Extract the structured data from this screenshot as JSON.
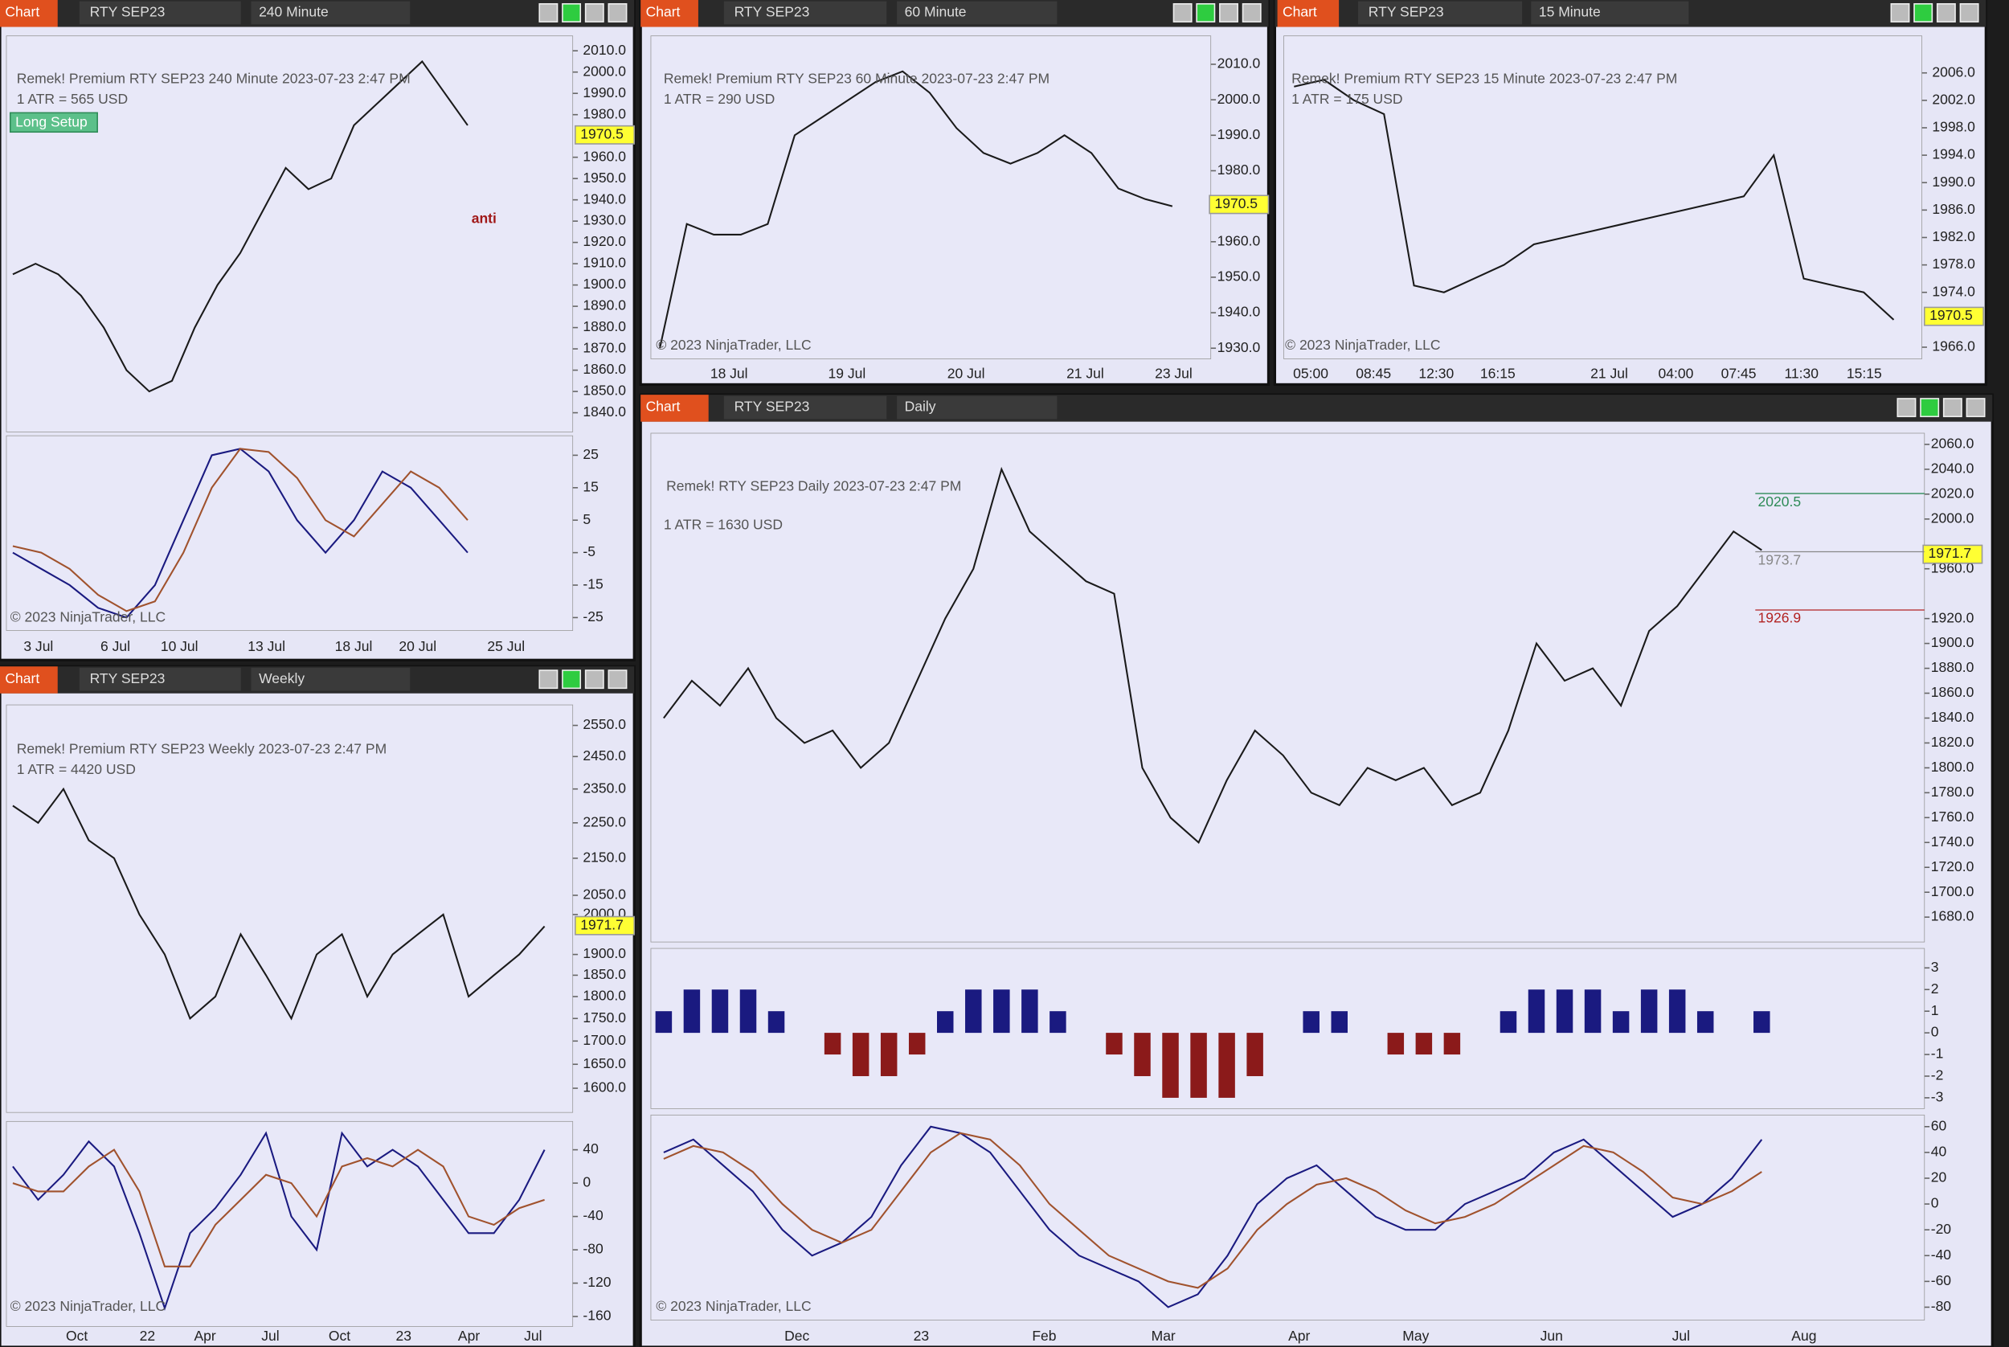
{
  "windows": [
    {
      "toolbar": {
        "title": "Chart",
        "instrument": "RTY SEP23",
        "interval": "240 Minute"
      },
      "info": "Remek!  Premium  RTY SEP23  240 Minute  2023-07-23 2:47 PM",
      "atr": "1 ATR = 565 USD",
      "badge": "Long Setup",
      "note": "anti",
      "copyright": "© 2023 NinjaTrader, LLC",
      "last_price": 1970.5,
      "x_labels": [
        "3 Jul",
        "6 Jul",
        "10 Jul",
        "13 Jul",
        "18 Jul",
        "20 Jul",
        "25 Jul"
      ],
      "panes": [
        {
          "type": "line",
          "ylim": [
            1831,
            2017
          ],
          "yticks": [
            {
              "value": 2010,
              "label": "2010.0"
            },
            {
              "value": 2000,
              "label": "2000.0"
            },
            {
              "value": 1990,
              "label": "1990.0"
            },
            {
              "value": 1980,
              "label": "1980.0"
            },
            {
              "value": 1960,
              "label": "1960.0"
            },
            {
              "value": 1950,
              "label": "1950.0"
            },
            {
              "value": 1940,
              "label": "1940.0"
            },
            {
              "value": 1930,
              "label": "1930.0"
            },
            {
              "value": 1920,
              "label": "1920.0"
            },
            {
              "value": 1910,
              "label": "1910.0"
            },
            {
              "value": 1900,
              "label": "1900.0"
            },
            {
              "value": 1890,
              "label": "1890.0"
            },
            {
              "value": 1880,
              "label": "1880.0"
            },
            {
              "value": 1870,
              "label": "1870.0"
            },
            {
              "value": 1860,
              "label": "1860.0"
            },
            {
              "value": 1850,
              "label": "1850.0"
            },
            {
              "value": 1840,
              "label": "1840.0"
            }
          ],
          "series": [
            {
              "color": "#1a1a1a",
              "values": [
                1905,
                1910,
                1905,
                1895,
                1880,
                1860,
                1850,
                1855,
                1880,
                1900,
                1915,
                1935,
                1955,
                1945,
                1950,
                1975,
                1985,
                1995,
                2005,
                1990,
                1975
              ]
            }
          ]
        },
        {
          "type": "line",
          "ylim": [
            -29,
            31
          ],
          "yticks": [
            25,
            15,
            5,
            -5,
            -15,
            -25
          ],
          "series": [
            {
              "color": "#1a1a80",
              "values": [
                -5,
                -10,
                -15,
                -22,
                -25,
                -15,
                5,
                25,
                27,
                20,
                5,
                -5,
                5,
                20,
                15,
                5,
                -5
              ]
            },
            {
              "color": "#a0522d",
              "values": [
                -3,
                -5,
                -10,
                -18,
                -23,
                -20,
                -5,
                15,
                27,
                26,
                18,
                5,
                0,
                10,
                20,
                15,
                5
              ]
            }
          ]
        }
      ]
    },
    {
      "toolbar": {
        "title": "Chart",
        "instrument": "RTY SEP23",
        "interval": "60 Minute"
      },
      "info": "Remek!  Premium  RTY SEP23  60 Minute  2023-07-23 2:47 PM",
      "atr": "1 ATR = 290 USD",
      "copyright": "© 2023 NinjaTrader, LLC",
      "last_price": 1970.5,
      "x_labels": [
        "18 Jul",
        "19 Jul",
        "20 Jul",
        "21 Jul",
        "23 Jul"
      ],
      "panes": [
        {
          "type": "line",
          "ylim": [
            1927,
            2018
          ],
          "yticks": [
            {
              "value": 2010,
              "label": "2010.0"
            },
            {
              "value": 2000,
              "label": "2000.0"
            },
            {
              "value": 1990,
              "label": "1990.0"
            },
            {
              "value": 1980,
              "label": "1980.0"
            },
            {
              "value": 1960,
              "label": "1960.0"
            },
            {
              "value": 1950,
              "label": "1950.0"
            },
            {
              "value": 1940,
              "label": "1940.0"
            },
            {
              "value": 1930,
              "label": "1930.0"
            }
          ],
          "series": [
            {
              "color": "#1a1a1a",
              "values": [
                1930,
                1965,
                1962,
                1962,
                1965,
                1990,
                1995,
                2000,
                2005,
                2008,
                2002,
                1992,
                1985,
                1982,
                1985,
                1990,
                1985,
                1975,
                1972,
                1970
              ]
            }
          ]
        }
      ]
    },
    {
      "toolbar": {
        "title": "Chart",
        "instrument": "RTY SEP23",
        "interval": "15 Minute"
      },
      "info": "Remek!  Premium  RTY SEP23  15 Minute  2023-07-23 2:47 PM",
      "atr": "1 ATR = 175 USD",
      "copyright": "© 2023 NinjaTrader, LLC",
      "last_price": 1970.5,
      "x_labels": [
        "05:00",
        "08:45",
        "12:30",
        "16:15",
        "21 Jul",
        "04:00",
        "07:45",
        "11:30",
        "15:15"
      ],
      "panes": [
        {
          "type": "line",
          "ylim": [
            1964.3,
            2011.4
          ],
          "yticks": [
            {
              "value": 2006,
              "label": "2006.0"
            },
            {
              "value": 2002,
              "label": "2002.0"
            },
            {
              "value": 1998,
              "label": "1998.0"
            },
            {
              "value": 1994,
              "label": "1994.0"
            },
            {
              "value": 1990,
              "label": "1990.0"
            },
            {
              "value": 1986,
              "label": "1986.0"
            },
            {
              "value": 1982,
              "label": "1982.0"
            },
            {
              "value": 1978,
              "label": "1978.0"
            },
            {
              "value": 1974,
              "label": "1974.0"
            },
            {
              "value": 1966,
              "label": "1966.0"
            }
          ],
          "series": [
            {
              "color": "#1a1a1a",
              "values": [
                2004,
                2005,
                2002,
                2000,
                1975,
                1974,
                1976,
                1978,
                1981,
                1982,
                1983,
                1984,
                1985,
                1986,
                1987,
                1988,
                1994,
                1976,
                1975,
                1974,
                1970
              ]
            }
          ]
        }
      ]
    },
    {
      "toolbar": {
        "title": "Chart",
        "instrument": "RTY SEP23",
        "interval": "Daily"
      },
      "info": "Remek!  RTY SEP23  Daily  2023-07-23 2:47 PM",
      "atr": "1 ATR = 1630 USD",
      "copyright": "© 2023 NinjaTrader, LLC",
      "last_price": 1971.7,
      "levels": [
        2020.5,
        1973.7,
        1926.9
      ],
      "level_colors": [
        "#2e8b57",
        "#888888",
        "#b22222"
      ],
      "x_labels": [
        "Dec",
        "23",
        "Feb",
        "Mar",
        "Apr",
        "May",
        "Jun",
        "Jul",
        "Aug"
      ],
      "panes": [
        {
          "type": "line",
          "ylim": [
            1660,
            2069
          ],
          "yticks": [
            {
              "value": 2060,
              "label": "2060.0"
            },
            {
              "value": 2040,
              "label": "2040.0"
            },
            {
              "value": 2020,
              "label": "2020.0"
            },
            {
              "value": 2000,
              "label": "2000.0"
            },
            {
              "value": 1960,
              "label": "1960.0"
            },
            {
              "value": 1920,
              "label": "1920.0"
            },
            {
              "value": 1900,
              "label": "1900.0"
            },
            {
              "value": 1880,
              "label": "1880.0"
            },
            {
              "value": 1860,
              "label": "1860.0"
            },
            {
              "value": 1840,
              "label": "1840.0"
            },
            {
              "value": 1820,
              "label": "1820.0"
            },
            {
              "value": 1800,
              "label": "1800.0"
            },
            {
              "value": 1780,
              "label": "1780.0"
            },
            {
              "value": 1760,
              "label": "1760.0"
            },
            {
              "value": 1740,
              "label": "1740.0"
            },
            {
              "value": 1720,
              "label": "1720.0"
            },
            {
              "value": 1700,
              "label": "1700.0"
            },
            {
              "value": 1680,
              "label": "1680.0"
            }
          ],
          "series": [
            {
              "color": "#1a1a1a",
              "values": [
                1840,
                1870,
                1850,
                1880,
                1840,
                1820,
                1830,
                1800,
                1820,
                1870,
                1920,
                1960,
                2040,
                1990,
                1970,
                1950,
                1940,
                1800,
                1760,
                1740,
                1790,
                1830,
                1810,
                1780,
                1770,
                1800,
                1790,
                1800,
                1770,
                1780,
                1830,
                1900,
                1870,
                1880,
                1850,
                1910,
                1930,
                1960,
                1990,
                1975
              ]
            }
          ]
        },
        {
          "type": "bar",
          "ylim": [
            -3.5,
            3.9
          ],
          "yticks": [
            3,
            2,
            1,
            0,
            -1,
            -2,
            -3
          ],
          "series": [
            {
              "color": "#1a1a80",
              "values": [
                1,
                2,
                2,
                2,
                1,
                0,
                -1,
                -2,
                -2,
                -1,
                1,
                2,
                2,
                2,
                1,
                0,
                -1,
                -2,
                -3,
                -3,
                -3,
                -2,
                0,
                1,
                1,
                0,
                -1,
                -1,
                -1,
                0,
                1,
                2,
                2,
                2,
                1,
                2,
                2,
                1,
                0,
                1
              ]
            }
          ]
        },
        {
          "type": "line",
          "ylim": [
            -90,
            69
          ],
          "yticks": [
            60,
            40,
            20,
            0,
            -20,
            -40,
            -60,
            -80
          ],
          "series": [
            {
              "color": "#1a1a80",
              "values": [
                40,
                50,
                30,
                10,
                -20,
                -40,
                -30,
                -10,
                30,
                60,
                55,
                40,
                10,
                -20,
                -40,
                -50,
                -60,
                -80,
                -70,
                -40,
                0,
                20,
                30,
                10,
                -10,
                -20,
                -20,
                0,
                10,
                20,
                40,
                50,
                30,
                10,
                -10,
                0,
                20,
                50
              ]
            },
            {
              "color": "#a0522d",
              "values": [
                35,
                45,
                40,
                25,
                0,
                -20,
                -30,
                -20,
                10,
                40,
                55,
                50,
                30,
                0,
                -20,
                -40,
                -50,
                -60,
                -65,
                -50,
                -20,
                0,
                15,
                20,
                10,
                -5,
                -15,
                -10,
                0,
                15,
                30,
                45,
                40,
                25,
                5,
                0,
                10,
                25
              ]
            }
          ]
        }
      ]
    },
    {
      "toolbar": {
        "title": "Chart",
        "instrument": "RTY SEP23",
        "interval": "Weekly"
      },
      "info": "Remek!  Premium  RTY SEP23  Weekly  2023-07-23 2:47 PM",
      "atr": "1 ATR = 4420 USD",
      "copyright": "© 2023 NinjaTrader, LLC",
      "last_price": 1971.7,
      "x_labels": [
        "Oct",
        "22",
        "Apr",
        "Jul",
        "Oct",
        "23",
        "Apr",
        "Jul"
      ],
      "panes": [
        {
          "type": "line",
          "log": true,
          "ylim": [
            1551,
            2618
          ],
          "yticks": [
            {
              "value": 2550,
              "label": "2550.0"
            },
            {
              "value": 2450,
              "label": "2450.0"
            },
            {
              "value": 2350,
              "label": "2350.0"
            },
            {
              "value": 2250,
              "label": "2250.0"
            },
            {
              "value": 2150,
              "label": "2150.0"
            },
            {
              "value": 2050,
              "label": "2050.0"
            },
            {
              "value": 2000,
              "label": "2000.0"
            },
            {
              "value": 1900,
              "label": "1900.0"
            },
            {
              "value": 1850,
              "label": "1850.0"
            },
            {
              "value": 1800,
              "label": "1800.0"
            },
            {
              "value": 1750,
              "label": "1750.0"
            },
            {
              "value": 1700,
              "label": "1700.0"
            },
            {
              "value": 1650,
              "label": "1650.0"
            },
            {
              "value": 1600,
              "label": "1600.0"
            }
          ],
          "series": [
            {
              "color": "#1a1a1a",
              "values": [
                2300,
                2250,
                2350,
                2200,
                2150,
                2000,
                1900,
                1750,
                1800,
                1950,
                1850,
                1750,
                1900,
                1950,
                1800,
                1900,
                1950,
                2000,
                1800,
                1850,
                1900,
                1970
              ]
            }
          ]
        },
        {
          "type": "line",
          "ylim": [
            -172,
            74
          ],
          "yticks": [
            40,
            0,
            -40,
            -80,
            -120,
            -160
          ],
          "series": [
            {
              "color": "#1a1a80",
              "values": [
                20,
                -20,
                10,
                50,
                20,
                -60,
                -150,
                -60,
                -30,
                10,
                60,
                -40,
                -80,
                60,
                20,
                40,
                20,
                -20,
                -60,
                -60,
                -20,
                40
              ]
            },
            {
              "color": "#a0522d",
              "values": [
                0,
                -10,
                -10,
                20,
                40,
                -10,
                -100,
                -100,
                -50,
                -20,
                10,
                0,
                -40,
                20,
                30,
                20,
                40,
                20,
                -40,
                -50,
                -30,
                -20
              ]
            }
          ]
        }
      ]
    }
  ]
}
